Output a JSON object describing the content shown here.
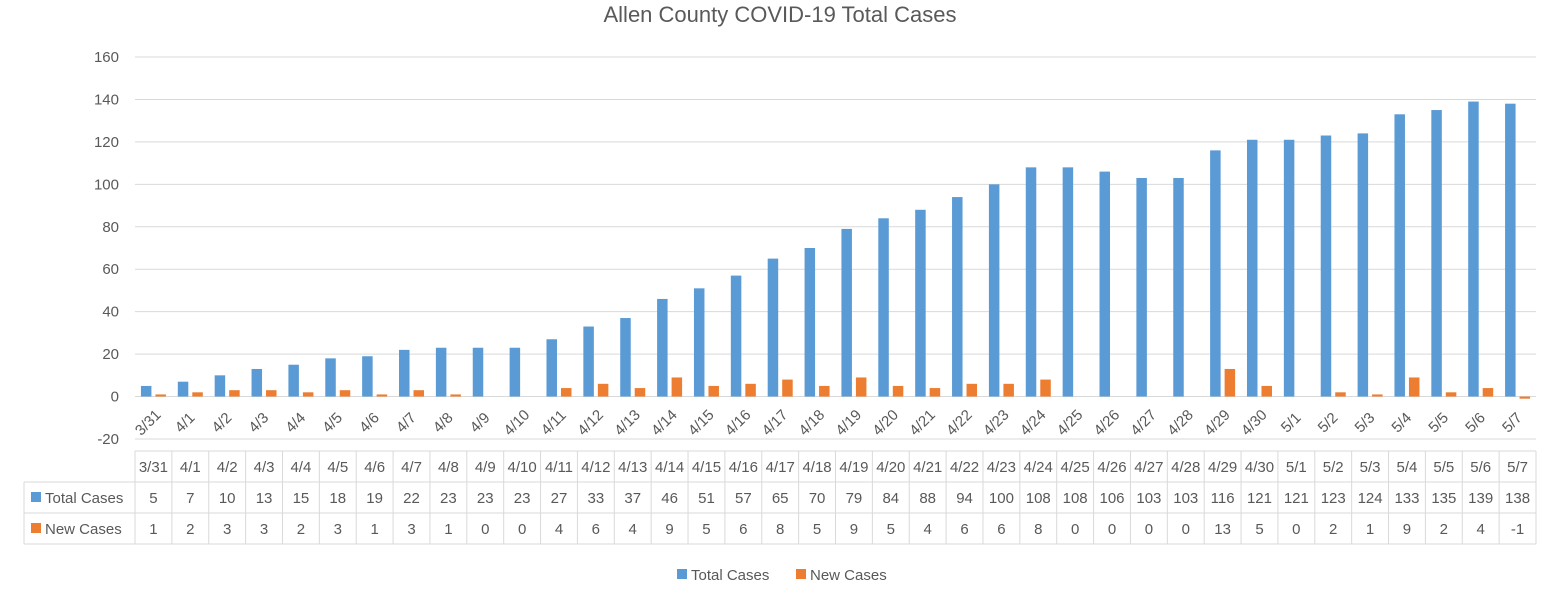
{
  "colors": {
    "total": "#5B9BD5",
    "new": "#ED7D31",
    "grid": "#D9D9D9",
    "text": "#595959",
    "title": "#404040"
  },
  "chart_data": {
    "type": "bar",
    "title": "Allen County COVID-19 Total Cases",
    "xlabel": "",
    "ylabel": "",
    "ylim": [
      -20,
      160
    ],
    "yticks": [
      -20,
      0,
      20,
      40,
      60,
      80,
      100,
      120,
      140,
      160
    ],
    "grid": true,
    "legend_position": "bottom",
    "data_table": true,
    "categories": [
      "3/31",
      "4/1",
      "4/2",
      "4/3",
      "4/4",
      "4/5",
      "4/6",
      "4/7",
      "4/8",
      "4/9",
      "4/10",
      "4/11",
      "4/12",
      "4/13",
      "4/14",
      "4/15",
      "4/16",
      "4/17",
      "4/18",
      "4/19",
      "4/20",
      "4/21",
      "4/22",
      "4/23",
      "4/24",
      "4/25",
      "4/26",
      "4/27",
      "4/28",
      "4/29",
      "4/30",
      "5/1",
      "5/2",
      "5/3",
      "5/4",
      "5/5",
      "5/6",
      "5/7"
    ],
    "series": [
      {
        "name": "Total Cases",
        "values": [
          5,
          7,
          10,
          13,
          15,
          18,
          19,
          22,
          23,
          23,
          23,
          27,
          33,
          37,
          46,
          51,
          57,
          65,
          70,
          79,
          84,
          88,
          94,
          100,
          108,
          108,
          106,
          103,
          103,
          116,
          121,
          121,
          123,
          124,
          133,
          135,
          139,
          138
        ]
      },
      {
        "name": "New Cases",
        "values": [
          1,
          2,
          3,
          3,
          2,
          3,
          1,
          3,
          1,
          0,
          0,
          4,
          6,
          4,
          9,
          5,
          6,
          8,
          5,
          9,
          5,
          4,
          6,
          6,
          8,
          0,
          0,
          0,
          0,
          13,
          5,
          0,
          2,
          1,
          9,
          2,
          4,
          -1
        ]
      }
    ]
  }
}
